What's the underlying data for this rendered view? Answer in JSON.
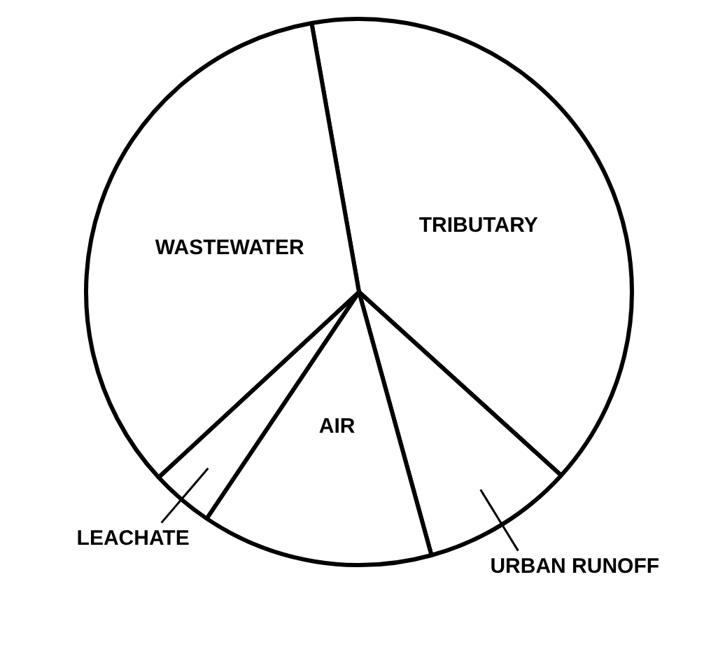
{
  "chart_data": {
    "type": "pie",
    "categories": [
      "TRIBUTARY",
      "URBAN RUNOFF",
      "AIR",
      "LEACHATE",
      "WASTEWATER"
    ],
    "values": [
      39.5,
      9,
      13.7,
      3.7,
      34.1
    ],
    "colors": [
      "#ffffff",
      "#ffffff",
      "#ffffff",
      "#ffffff",
      "#ffffff"
    ],
    "legend": false
  }
}
